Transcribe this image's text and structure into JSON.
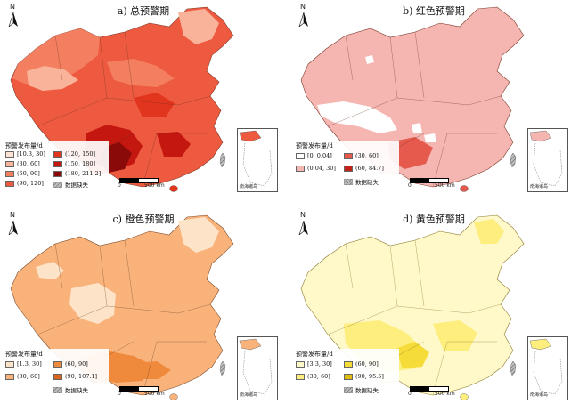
{
  "panels": [
    {
      "title": "a) 总预警期",
      "legend_title": "预警发布量/d",
      "classes": [
        {
          "label": "[10.3, 30]",
          "color": "#fde3d6"
        },
        {
          "label": "(30, 60]",
          "color": "#f9b39b"
        },
        {
          "label": "(60, 90]",
          "color": "#f47f60"
        },
        {
          "label": "(90, 120]",
          "color": "#ee5a40"
        },
        {
          "label": "(120, 150]",
          "color": "#e2351d"
        },
        {
          "label": "(150, 180]",
          "color": "#c4170f"
        },
        {
          "label": "(180, 211.2]",
          "color": "#8a0a0a"
        },
        {
          "label": "数据缺失",
          "color": "#9a9a9a",
          "hatched": true
        }
      ],
      "map_colors": {
        "base": "#ee5a40",
        "north": "#f47f60",
        "northwest": "#f9b39b",
        "hotspot": "#8a0a0a",
        "mid": "#c4170f"
      }
    },
    {
      "title": "b) 红色预警期",
      "legend_title": "预警发布量/d",
      "classes": [
        {
          "label": "[0, 0.04]",
          "color": "#ffffff"
        },
        {
          "label": "(0.04, 30]",
          "color": "#f5b5b1"
        },
        {
          "label": "(30, 60]",
          "color": "#e55a4c"
        },
        {
          "label": "(60, 84.7]",
          "color": "#c02418"
        },
        {
          "label": "数据缺失",
          "color": "#9a9a9a",
          "hatched": true
        }
      ],
      "map_colors": {
        "base": "#f5b5b1",
        "hotspot": "#e55a4c",
        "white": "#ffffff"
      }
    },
    {
      "title": "c) 橙色预警期",
      "legend_title": "预警发布量/d",
      "classes": [
        {
          "label": "[1.3, 30]",
          "color": "#fde3c7"
        },
        {
          "label": "(30, 60]",
          "color": "#f8b27a"
        },
        {
          "label": "(60, 90]",
          "color": "#ef8a3c"
        },
        {
          "label": "(90, 107.1]",
          "color": "#d9641a"
        },
        {
          "label": "数据缺失",
          "color": "#9a9a9a",
          "hatched": true
        }
      ],
      "map_colors": {
        "base": "#f8b27a",
        "light": "#fde3c7",
        "hotspot": "#ef8a3c"
      }
    },
    {
      "title": "d) 黄色预警期",
      "legend_title": "预警发布量/d",
      "classes": [
        {
          "label": "[3.3, 30]",
          "color": "#fff8c8"
        },
        {
          "label": "(30, 60]",
          "color": "#fdee7d"
        },
        {
          "label": "(60, 90]",
          "color": "#f6dc38"
        },
        {
          "label": "(90, 95.5]",
          "color": "#ddbd12"
        },
        {
          "label": "数据缺失",
          "color": "#9a9a9a",
          "hatched": true
        }
      ],
      "map_colors": {
        "base": "#fff8c8",
        "mid": "#fdee7d",
        "hotspot": "#f6dc38"
      }
    }
  ],
  "common": {
    "north_label": "N",
    "scale_zero": "0",
    "scale_label": "500 km",
    "inset_label": "南海诸岛"
  }
}
